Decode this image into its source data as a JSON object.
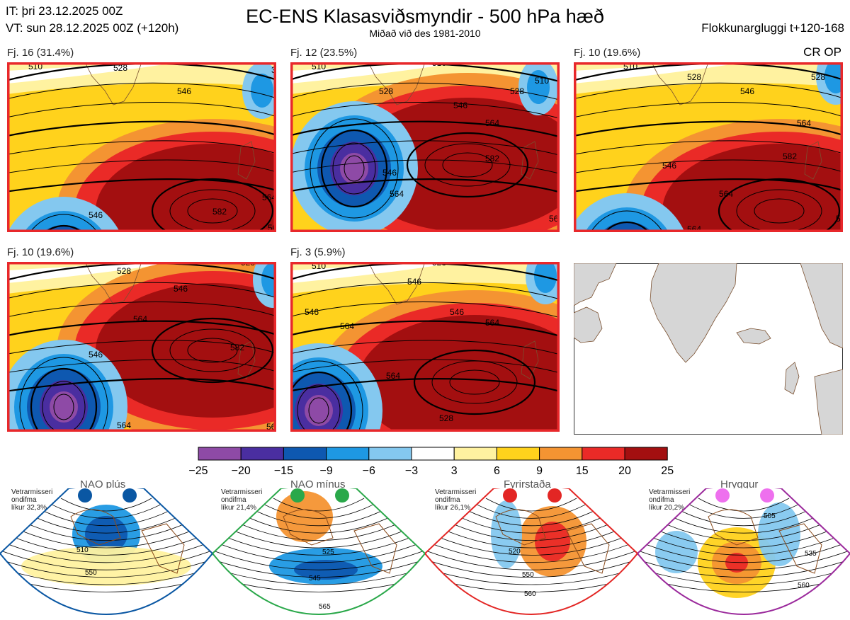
{
  "header": {
    "issue_time": "IT: þri 23.12.2025 00Z",
    "valid_time": "VT: sun 28.12.2025 00Z  (+120h)",
    "title": "EC-ENS Klasasviðsmyndir - 500 hPa hæð",
    "subtitle": "Miðað við des 1981-2010",
    "window": "Flokkunargluggi t+120-168",
    "regime_code": "CR OP"
  },
  "chart_data": [
    {
      "type": "heatmap",
      "title": "Fj. 16 (31.4%)",
      "contour_labels": [
        "510",
        "528",
        "546",
        "564",
        "582",
        "546",
        "564",
        "56",
        "32"
      ],
      "colors": {
        "border": "#e8282b"
      }
    },
    {
      "type": "heatmap",
      "title": "Fj. 12 (23.5%)",
      "contour_labels": [
        "510",
        "510",
        "528",
        "546",
        "564",
        "582",
        "546",
        "564",
        "528",
        "510",
        "564"
      ],
      "colors": {
        "border": "#e8282b"
      }
    },
    {
      "type": "heatmap",
      "title": "Fj. 10 (19.6%)",
      "contour_labels": [
        "510",
        "528",
        "546",
        "564",
        "582",
        "546",
        "564",
        "564",
        "528",
        "56"
      ],
      "colors": {
        "border": "#e8282b"
      }
    },
    {
      "type": "heatmap",
      "title": "Fj. 10 (19.6%)",
      "contour_labels": [
        "528",
        "546",
        "564",
        "582",
        "546",
        "564",
        "56",
        "528"
      ],
      "colors": {
        "border": "#e8282b"
      }
    },
    {
      "type": "heatmap",
      "title": "Fj. 3 (5.9%)",
      "contour_labels": [
        "510",
        "528",
        "546",
        "546",
        "564",
        "546",
        "564",
        "564",
        "528"
      ],
      "colors": {
        "border": "#e8282b"
      }
    },
    {
      "type": "colorbar",
      "ticks": [
        "−25",
        "−20",
        "−15",
        "−9",
        "−6",
        "−3",
        "3",
        "6",
        "9",
        "15",
        "20",
        "25"
      ],
      "colors": [
        "#8e4aa6",
        "#4a2ea0",
        "#0e58b0",
        "#1e98e3",
        "#84c8ef",
        "#ffffff",
        "#fff2a0",
        "#ffd21c",
        "#f49432",
        "#ea2a27",
        "#a30f10"
      ]
    },
    {
      "type": "heatmap",
      "title": "NAO plús",
      "stat_label": "Vetrarmisseri\nondifma\nlíkur 32,3%",
      "contour_labels": [
        "510",
        "550"
      ],
      "colors": {
        "border": "#0a57a3",
        "dot": "#0a57a3"
      }
    },
    {
      "type": "heatmap",
      "title": "NAO mínus",
      "stat_label": "Vetrarmisseri\nondifma\nlíkur 21,4%",
      "contour_labels": [
        "525",
        "545",
        "565"
      ],
      "colors": {
        "border": "#2aa84a",
        "dot": "#2aa84a"
      }
    },
    {
      "type": "heatmap",
      "title": "Fyrirstaða",
      "stat_label": "Vetrarmisseri\nondifma\nlíkur 26,1%",
      "contour_labels": [
        "520",
        "550",
        "560"
      ],
      "colors": {
        "border": "#e32624",
        "dot": "#e32624"
      }
    },
    {
      "type": "heatmap",
      "title": "Hryggur",
      "stat_label": "Vetrarmisseri\nondifma\nlíkur 20,2%",
      "contour_labels": [
        "505",
        "535",
        "560"
      ],
      "colors": {
        "border": "#9b2a9c",
        "dot": "#ee70ee"
      }
    }
  ]
}
